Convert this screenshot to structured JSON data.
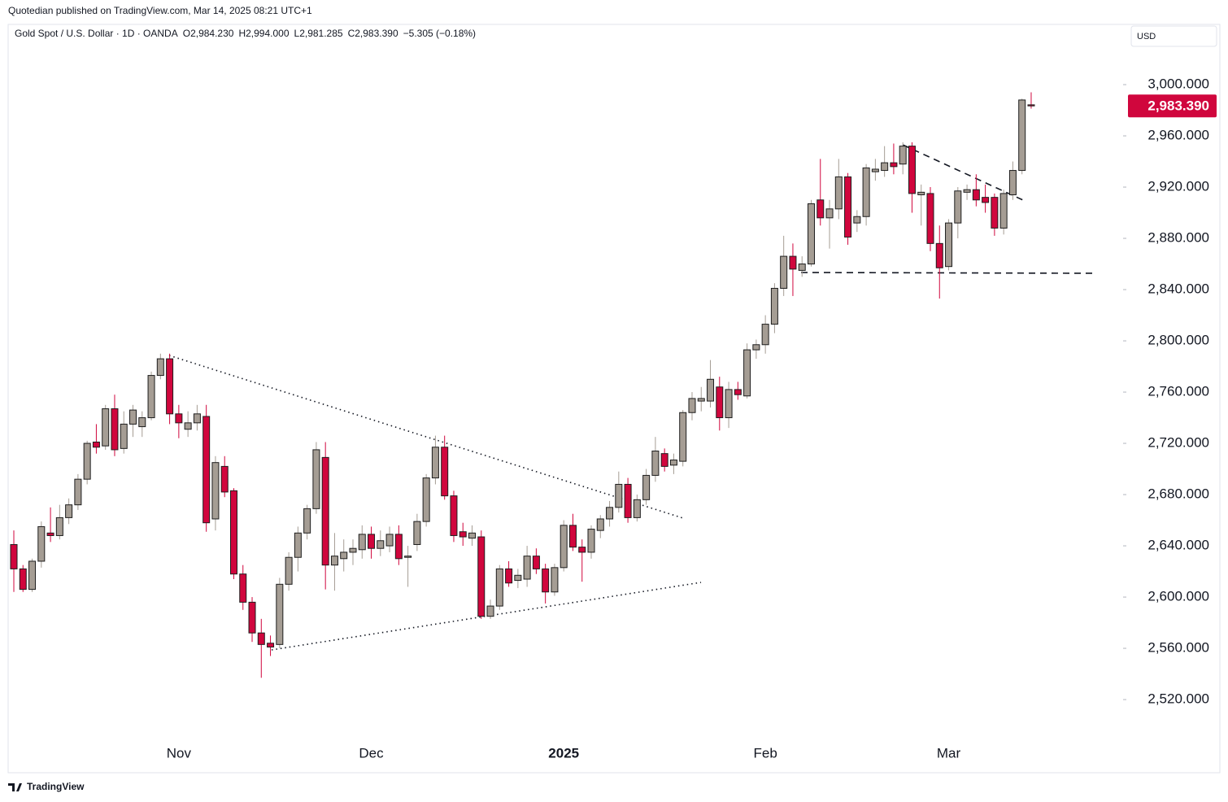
{
  "credit": "Quotedian published on TradingView.com, Mar 14, 2025 08:21 UTC+1",
  "brand": "TradingView",
  "chart_data": {
    "type": "candlestick",
    "title": "Gold Spot / U.S. Dollar · 1D · OANDA",
    "header_values": [
      "O2,984.230",
      "H2,994.000",
      "L2,981.285",
      "C2,983.390",
      "−5.305 (−0.18%)"
    ],
    "currency": "USD",
    "up_color": "#a59d94",
    "down_color": "#d0063d",
    "grid": false,
    "categories": [
      null,
      null,
      null,
      null,
      null,
      null,
      null,
      null,
      null,
      null,
      null,
      null,
      null,
      null,
      null,
      null,
      null,
      null,
      "Nov",
      null,
      null,
      null,
      null,
      null,
      null,
      null,
      null,
      null,
      null,
      null,
      null,
      null,
      null,
      null,
      null,
      null,
      null,
      null,
      null,
      "Dec",
      null,
      null,
      null,
      null,
      null,
      null,
      null,
      null,
      null,
      null,
      null,
      null,
      null,
      null,
      null,
      null,
      null,
      null,
      null,
      null,
      "2025",
      null,
      null,
      null,
      null,
      null,
      null,
      null,
      null,
      null,
      null,
      null,
      null,
      null,
      null,
      null,
      null,
      null,
      null,
      null,
      null,
      null,
      "Feb",
      null,
      null,
      null,
      null,
      null,
      null,
      null,
      null,
      null,
      null,
      null,
      null,
      null,
      null,
      null,
      null,
      null,
      null,
      null,
      "Mar",
      null,
      null,
      null,
      null,
      null,
      null,
      null,
      null,
      null
    ],
    "open": [
      2641,
      2622,
      2606,
      2628,
      2650,
      2648,
      2662,
      2672,
      2692,
      2721,
      2718,
      2747,
      2716,
      2735,
      2733,
      2740,
      2773,
      2786,
      2743,
      2731,
      2736,
      2741,
      2661,
      2702,
      2683,
      2618,
      2596,
      2572,
      2564,
      2563,
      2610,
      2631,
      2650,
      2669,
      2709,
      2625,
      2630,
      2635,
      2637,
      2649,
      2638,
      2640,
      2649,
      2631,
      2641,
      2659,
      2693,
      2717,
      2679,
      2651,
      2646,
      2647,
      2585,
      2593,
      2622,
      2613,
      2614,
      2632,
      2622,
      2604,
      2623,
      2656,
      2639,
      2635,
      2652,
      2661,
      2670,
      2688,
      2662,
      2676,
      2695,
      2712,
      2703,
      2706,
      2744,
      2753,
      2753,
      2764,
      2740,
      2762,
      2757,
      2793,
      2797,
      2813,
      2841,
      2866,
      2855,
      2860,
      2910,
      2896,
      2903,
      2928,
      2892,
      2897,
      2932,
      2933,
      2939,
      2938,
      2952,
      2914,
      2915,
      2876,
      2858,
      2892,
      2916,
      2918,
      2912,
      2912,
      2888,
      2914,
      2933,
      2984.23
    ],
    "high": [
      2652,
      2625,
      2630,
      2659,
      2670,
      2672,
      2677,
      2696,
      2722,
      2735,
      2750,
      2758,
      2745,
      2750,
      2745,
      2776,
      2790,
      2790,
      2750,
      2745,
      2750,
      2750,
      2710,
      2710,
      2685,
      2625,
      2600,
      2583,
      2570,
      2615,
      2635,
      2655,
      2672,
      2721,
      2721,
      2650,
      2645,
      2645,
      2656,
      2655,
      2652,
      2655,
      2656,
      2640,
      2665,
      2696,
      2726,
      2726,
      2683,
      2658,
      2656,
      2652,
      2598,
      2625,
      2628,
      2622,
      2640,
      2638,
      2626,
      2626,
      2660,
      2665,
      2645,
      2656,
      2664,
      2675,
      2698,
      2693,
      2680,
      2700,
      2725,
      2716,
      2712,
      2746,
      2760,
      2764,
      2785,
      2772,
      2768,
      2768,
      2798,
      2801,
      2820,
      2845,
      2882,
      2876,
      2866,
      2910,
      2942,
      2910,
      2942,
      2931,
      2902,
      2938,
      2942,
      2952,
      2954,
      2955,
      2955,
      2922,
      2920,
      2890,
      2895,
      2920,
      2922,
      2930,
      2922,
      2915,
      2918,
      2940,
      2989,
      2994
    ],
    "low": [
      2604,
      2604,
      2604,
      2623,
      2643,
      2645,
      2657,
      2668,
      2688,
      2712,
      2715,
      2710,
      2712,
      2725,
      2725,
      2738,
      2770,
      2735,
      2724,
      2725,
      2730,
      2651,
      2652,
      2678,
      2614,
      2590,
      2565,
      2537,
      2554,
      2560,
      2605,
      2620,
      2645,
      2665,
      2606,
      2605,
      2620,
      2625,
      2630,
      2630,
      2632,
      2635,
      2625,
      2608,
      2636,
      2655,
      2688,
      2676,
      2643,
      2640,
      2640,
      2583,
      2583,
      2590,
      2608,
      2607,
      2608,
      2618,
      2595,
      2601,
      2620,
      2636,
      2612,
      2630,
      2646,
      2655,
      2666,
      2658,
      2659,
      2672,
      2690,
      2698,
      2696,
      2702,
      2738,
      2745,
      2748,
      2730,
      2732,
      2754,
      2755,
      2786,
      2790,
      2806,
      2835,
      2835,
      2850,
      2858,
      2890,
      2872,
      2895,
      2875,
      2885,
      2890,
      2925,
      2928,
      2930,
      2930,
      2900,
      2890,
      2870,
      2833,
      2855,
      2880,
      2910,
      2905,
      2900,
      2882,
      2883,
      2910,
      2930,
      2981.285
    ],
    "close": [
      2622,
      2606,
      2628,
      2655,
      2648,
      2662,
      2672,
      2692,
      2720,
      2717,
      2747,
      2715,
      2735,
      2746,
      2740,
      2773,
      2786,
      2743,
      2736,
      2736,
      2743,
      2658,
      2705,
      2682,
      2618,
      2596,
      2572,
      2563,
      2561,
      2610,
      2631,
      2650,
      2669,
      2715,
      2625,
      2632,
      2635,
      2638,
      2649,
      2638,
      2644,
      2649,
      2630,
      2632,
      2659,
      2693,
      2717,
      2679,
      2648,
      2647,
      2650,
      2585,
      2593,
      2622,
      2611,
      2617,
      2632,
      2622,
      2604,
      2623,
      2656,
      2639,
      2635,
      2653,
      2661,
      2670,
      2688,
      2662,
      2676,
      2695,
      2714,
      2702,
      2707,
      2744,
      2755,
      2755,
      2770,
      2740,
      2762,
      2758,
      2793,
      2797,
      2813,
      2841,
      2866,
      2856,
      2860,
      2907,
      2896,
      2903,
      2928,
      2881,
      2897,
      2935,
      2934,
      2939,
      2936,
      2952,
      2915,
      2916,
      2876,
      2857,
      2892,
      2917,
      2918,
      2910,
      2908,
      2888,
      2915,
      2933,
      2988,
      2983.39
    ],
    "last_price": {
      "value": 2983.39,
      "label": "2,983.390",
      "color": "#d0063d"
    },
    "ylim": [
      2488.3,
      3047
    ],
    "yticks": [
      {
        "value": 2520,
        "label": "2,520.000"
      },
      {
        "value": 2560,
        "label": "2,560.000"
      },
      {
        "value": 2600,
        "label": "2,600.000"
      },
      {
        "value": 2640,
        "label": "2,640.000"
      },
      {
        "value": 2680,
        "label": "2,680.000"
      },
      {
        "value": 2720,
        "label": "2,720.000"
      },
      {
        "value": 2760,
        "label": "2,760.000"
      },
      {
        "value": 2800,
        "label": "2,800.000"
      },
      {
        "value": 2840,
        "label": "2,840.000"
      },
      {
        "value": 2880,
        "label": "2,880.000"
      },
      {
        "value": 2920,
        "label": "2,920.000"
      },
      {
        "value": 2960,
        "label": "2,960.000"
      },
      {
        "value": 3000,
        "label": "3,000.000"
      }
    ]
  }
}
